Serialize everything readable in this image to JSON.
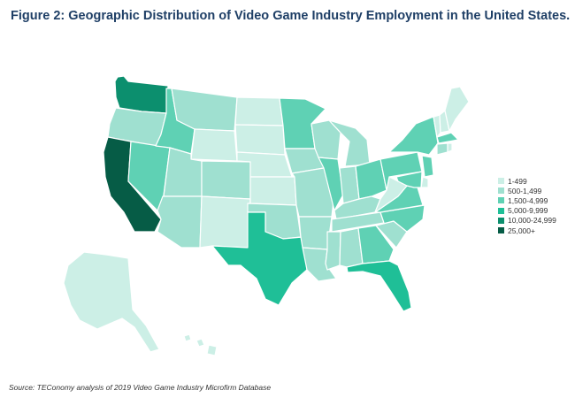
{
  "title": "Figure 2: Geographic Distribution of Video Game Industry Employment in the United States.",
  "source": "Source: TEConomy analysis of 2019 Video Game Industry Microfirm Database",
  "legend": [
    {
      "label": "1-499",
      "color": "#ccefe6"
    },
    {
      "label": "500-1,499",
      "color": "#9fe0d0"
    },
    {
      "label": "1,500-4,999",
      "color": "#5fd1b4"
    },
    {
      "label": "5,000-9,999",
      "color": "#1fbf97"
    },
    {
      "label": "10,000-24,999",
      "color": "#0c8f6e"
    },
    {
      "label": "25,000+",
      "color": "#065c46"
    }
  ],
  "states": {
    "WA": 4,
    "OR": 1,
    "CA": 5,
    "NV": 2,
    "ID": 2,
    "MT": 1,
    "WY": 0,
    "UT": 1,
    "AZ": 1,
    "CO": 1,
    "NM": 0,
    "ND": 0,
    "SD": 0,
    "NE": 0,
    "KS": 0,
    "OK": 1,
    "TX": 3,
    "MN": 2,
    "IA": 1,
    "MO": 1,
    "AR": 1,
    "LA": 1,
    "WI": 1,
    "IL": 2,
    "MI": 1,
    "IN": 1,
    "OH": 2,
    "KY": 1,
    "TN": 1,
    "MS": 1,
    "AL": 1,
    "GA": 2,
    "FL": 3,
    "SC": 1,
    "NC": 2,
    "VA": 2,
    "WV": 0,
    "PA": 2,
    "NY": 2,
    "VT": 0,
    "NH": 0,
    "ME": 0,
    "MA": 2,
    "CT": 1,
    "NJ": 2,
    "MD": 2,
    "DE": 0,
    "RI": 0,
    "AK": 0,
    "HI": 0
  }
}
